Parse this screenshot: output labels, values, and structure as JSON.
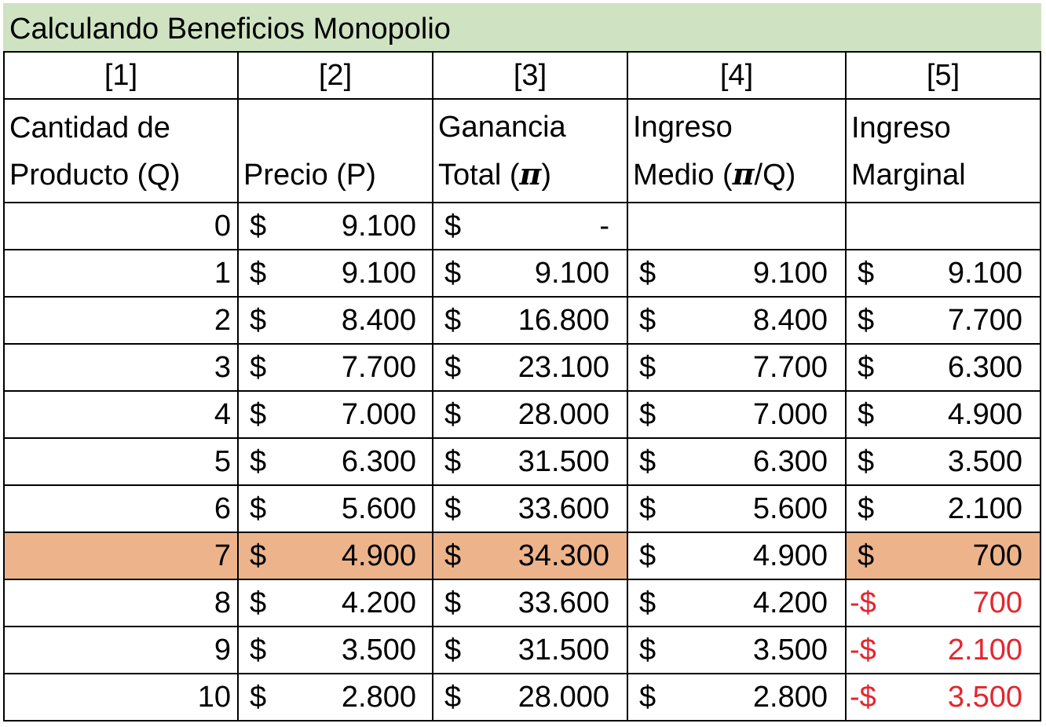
{
  "title": "Calculando Beneficios Monopolio",
  "column_numbers": [
    "[1]",
    "[2]",
    "[3]",
    "[4]",
    "[5]"
  ],
  "headers": {
    "c1_line1": "Cantidad de",
    "c1_line2": "Producto (Q)",
    "c2_line1": "",
    "c2_line2": "Precio (P)",
    "c3_line1": "Ganancia",
    "c3_line2a": "Total (",
    "c3_pi": "π",
    "c3_line2b": ")",
    "c4_line1": "Ingreso",
    "c4_line2a": "Medio (",
    "c4_pi": "π",
    "c4_line2b": "/Q)",
    "c5_line1": "Ingreso",
    "c5_line2": "Marginal"
  },
  "currency_symbol": "$",
  "negative_currency_symbol": "-$",
  "highlight_color": "#edb48c",
  "negative_color": "#e3262e",
  "rows": [
    {
      "q": "0",
      "price": "9.100",
      "total": "-",
      "avg": "",
      "marg": ""
    },
    {
      "q": "1",
      "price": "9.100",
      "total": "9.100",
      "avg": "9.100",
      "marg": "9.100"
    },
    {
      "q": "2",
      "price": "8.400",
      "total": "16.800",
      "avg": "8.400",
      "marg": "7.700"
    },
    {
      "q": "3",
      "price": "7.700",
      "total": "23.100",
      "avg": "7.700",
      "marg": "6.300"
    },
    {
      "q": "4",
      "price": "7.000",
      "total": "28.000",
      "avg": "7.000",
      "marg": "4.900"
    },
    {
      "q": "5",
      "price": "6.300",
      "total": "31.500",
      "avg": "6.300",
      "marg": "3.500"
    },
    {
      "q": "6",
      "price": "5.600",
      "total": "33.600",
      "avg": "5.600",
      "marg": "2.100"
    },
    {
      "q": "7",
      "price": "4.900",
      "total": "34.300",
      "avg": "4.900",
      "marg": "700"
    },
    {
      "q": "8",
      "price": "4.200",
      "total": "33.600",
      "avg": "4.200",
      "marg": "700"
    },
    {
      "q": "9",
      "price": "3.500",
      "total": "31.500",
      "avg": "3.500",
      "marg": "2.100"
    },
    {
      "q": "10",
      "price": "2.800",
      "total": "28.000",
      "avg": "2.800",
      "marg": "3.500"
    }
  ]
}
